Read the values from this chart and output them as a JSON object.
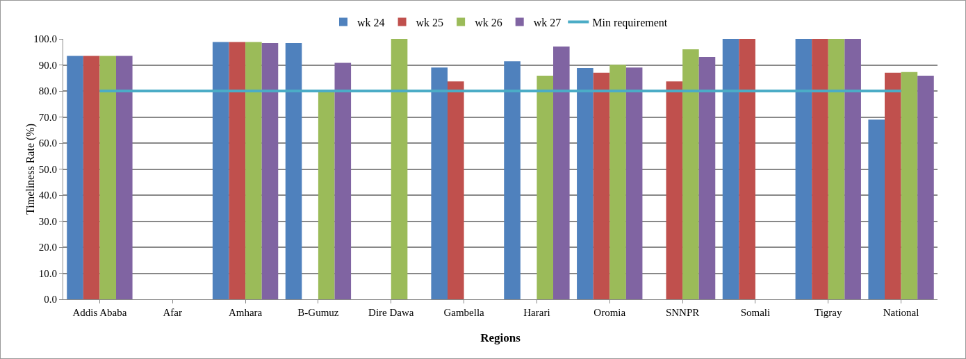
{
  "chart_data": {
    "type": "bar",
    "xlabel": "Regions",
    "ylabel": "Timeliness Rate (%)",
    "categories": [
      "Addis Ababa",
      "Afar",
      "Amhara",
      "B-Gumuz",
      "Dire Dawa",
      "Gambella",
      "Harari",
      "Oromia",
      "SNNPR",
      "Somali",
      "Tigray",
      "National"
    ],
    "series": [
      {
        "name": "wk 24",
        "color": "#4f81bd",
        "values": [
          93.5,
          null,
          98.8,
          98.4,
          null,
          89.0,
          91.4,
          88.8,
          null,
          100,
          100,
          69.0
        ]
      },
      {
        "name": "wk 25",
        "color": "#c0504d",
        "values": [
          93.5,
          null,
          98.8,
          null,
          null,
          83.7,
          null,
          87.0,
          83.7,
          100,
          100,
          87.0
        ]
      },
      {
        "name": "wk 26",
        "color": "#9bbb59",
        "values": [
          93.5,
          null,
          98.8,
          80.0,
          100,
          null,
          85.9,
          90.1,
          96.0,
          null,
          100,
          87.3
        ]
      },
      {
        "name": "wk 27",
        "color": "#8064a2",
        "values": [
          93.5,
          null,
          98.4,
          90.8,
          null,
          null,
          97.1,
          89.0,
          93.1,
          null,
          100,
          85.9
        ]
      },
      {
        "name": "Min requirement",
        "type": "line",
        "color": "#4bacc6",
        "values": [
          80,
          80,
          80,
          80,
          80,
          80,
          80,
          80,
          80,
          80,
          80,
          80
        ]
      }
    ],
    "ylim": [
      0,
      100
    ],
    "yticks": [
      {
        "value": 0,
        "label": "0.0"
      },
      {
        "value": 10,
        "label": "10.0"
      },
      {
        "value": 20,
        "label": "20.0"
      },
      {
        "value": 30,
        "label": "30.0"
      },
      {
        "value": 40,
        "label": "40.0"
      },
      {
        "value": 50,
        "label": "50.0"
      },
      {
        "value": 60,
        "label": "60.0"
      },
      {
        "value": 70,
        "label": "70.0"
      },
      {
        "value": 80,
        "label": "80.0"
      },
      {
        "value": 90,
        "label": "90.0"
      },
      {
        "value": 100,
        "label": "100.0"
      }
    ],
    "grid": "y",
    "legend": "top",
    "marker": "none",
    "line_style": "solid"
  }
}
